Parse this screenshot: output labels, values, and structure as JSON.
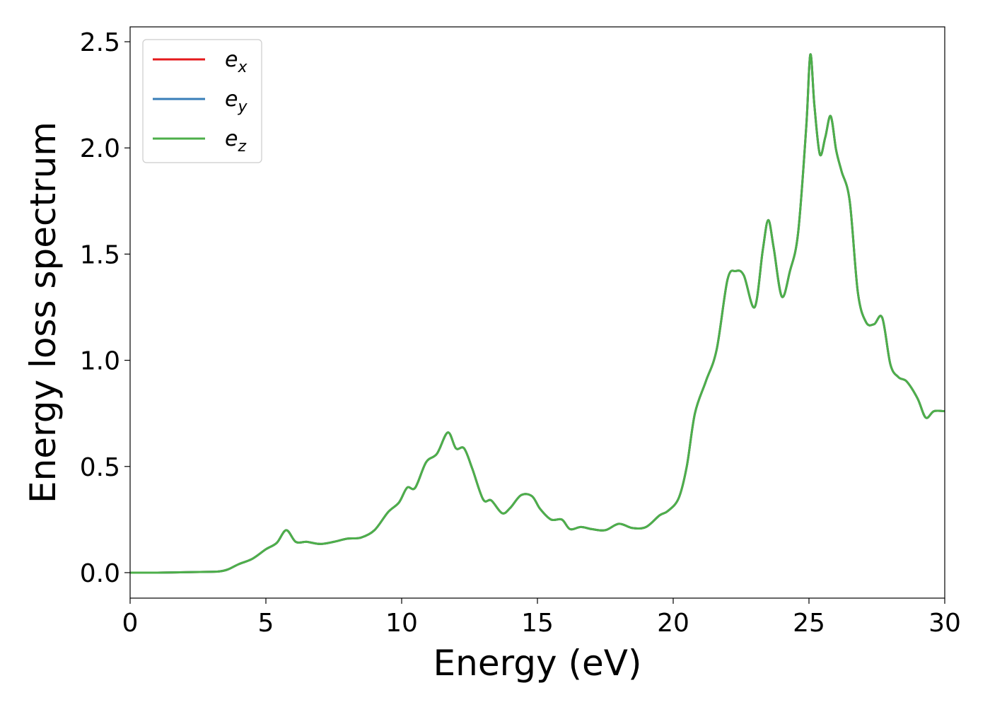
{
  "chart_data": {
    "type": "line",
    "title": "",
    "xlabel": "Energy (eV)",
    "ylabel": "Energy loss spectrum",
    "xlim": [
      0,
      30
    ],
    "ylim": [
      -0.12,
      2.57
    ],
    "xticks": [
      0,
      5,
      10,
      15,
      20,
      25,
      30
    ],
    "xtick_labels": [
      "0",
      "5",
      "10",
      "15",
      "20",
      "25",
      "30"
    ],
    "yticks": [
      0.0,
      0.5,
      1.0,
      1.5,
      2.0,
      2.5
    ],
    "ytick_labels": [
      "0.0",
      "0.5",
      "1.0",
      "1.5",
      "2.0",
      "2.5"
    ],
    "grid": false,
    "legend_position": "top-left",
    "x": [
      0,
      1,
      2,
      3,
      3.3,
      3.6,
      4.0,
      4.5,
      5.0,
      5.4,
      5.75,
      6.1,
      6.5,
      7.0,
      7.5,
      8.0,
      8.5,
      9.0,
      9.5,
      9.9,
      10.2,
      10.5,
      10.9,
      11.3,
      11.7,
      12.0,
      12.3,
      12.6,
      13.0,
      13.3,
      13.7,
      14.0,
      14.4,
      14.8,
      15.1,
      15.5,
      15.9,
      16.2,
      16.6,
      17.0,
      17.5,
      18.0,
      18.5,
      19.0,
      19.5,
      19.8,
      20.2,
      20.5,
      20.8,
      21.2,
      21.6,
      22.0,
      22.3,
      22.6,
      23.0,
      23.3,
      23.5,
      23.7,
      24.0,
      24.3,
      24.6,
      24.9,
      25.05,
      25.2,
      25.4,
      25.6,
      25.8,
      26.0,
      26.2,
      26.5,
      26.8,
      27.1,
      27.4,
      27.7,
      28.0,
      28.3,
      28.6,
      29.0,
      29.3,
      29.6,
      30.0
    ],
    "series": [
      {
        "name": "e_x",
        "label_base": "e",
        "label_sub": "x",
        "color": "#e41a1c",
        "y": [
          0.0,
          0.0,
          0.002,
          0.004,
          0.006,
          0.015,
          0.04,
          0.065,
          0.11,
          0.14,
          0.2,
          0.145,
          0.145,
          0.135,
          0.145,
          0.16,
          0.165,
          0.2,
          0.285,
          0.33,
          0.4,
          0.4,
          0.52,
          0.56,
          0.66,
          0.585,
          0.585,
          0.49,
          0.345,
          0.34,
          0.28,
          0.305,
          0.365,
          0.36,
          0.3,
          0.25,
          0.25,
          0.205,
          0.215,
          0.205,
          0.2,
          0.23,
          0.21,
          0.215,
          0.27,
          0.29,
          0.35,
          0.5,
          0.75,
          0.9,
          1.05,
          1.38,
          1.42,
          1.4,
          1.25,
          1.52,
          1.66,
          1.53,
          1.3,
          1.42,
          1.6,
          2.1,
          2.44,
          2.2,
          1.97,
          2.05,
          2.15,
          1.99,
          1.89,
          1.75,
          1.32,
          1.18,
          1.17,
          1.2,
          0.98,
          0.92,
          0.9,
          0.82,
          0.73,
          0.76,
          0.76
        ]
      },
      {
        "name": "e_y",
        "label_base": "e",
        "label_sub": "y",
        "color": "#377eb8",
        "y": [
          0.0,
          0.0,
          0.002,
          0.004,
          0.006,
          0.015,
          0.04,
          0.065,
          0.11,
          0.14,
          0.2,
          0.145,
          0.145,
          0.135,
          0.145,
          0.16,
          0.165,
          0.2,
          0.285,
          0.33,
          0.4,
          0.4,
          0.52,
          0.56,
          0.66,
          0.585,
          0.585,
          0.49,
          0.345,
          0.34,
          0.28,
          0.305,
          0.365,
          0.36,
          0.3,
          0.25,
          0.25,
          0.205,
          0.215,
          0.205,
          0.2,
          0.23,
          0.21,
          0.215,
          0.27,
          0.29,
          0.35,
          0.5,
          0.75,
          0.9,
          1.05,
          1.38,
          1.42,
          1.4,
          1.25,
          1.52,
          1.66,
          1.53,
          1.3,
          1.42,
          1.6,
          2.1,
          2.44,
          2.2,
          1.97,
          2.05,
          2.15,
          1.99,
          1.89,
          1.75,
          1.32,
          1.18,
          1.17,
          1.2,
          0.98,
          0.92,
          0.9,
          0.82,
          0.73,
          0.76,
          0.76
        ]
      },
      {
        "name": "e_z",
        "label_base": "e",
        "label_sub": "z",
        "color": "#4daf4a",
        "y": [
          0.0,
          0.0,
          0.002,
          0.004,
          0.006,
          0.015,
          0.04,
          0.065,
          0.11,
          0.14,
          0.2,
          0.145,
          0.145,
          0.135,
          0.145,
          0.16,
          0.165,
          0.2,
          0.285,
          0.33,
          0.4,
          0.4,
          0.52,
          0.56,
          0.66,
          0.585,
          0.585,
          0.49,
          0.345,
          0.34,
          0.28,
          0.305,
          0.365,
          0.36,
          0.3,
          0.25,
          0.25,
          0.205,
          0.215,
          0.205,
          0.2,
          0.23,
          0.21,
          0.215,
          0.27,
          0.29,
          0.35,
          0.5,
          0.75,
          0.9,
          1.05,
          1.38,
          1.42,
          1.4,
          1.25,
          1.52,
          1.66,
          1.53,
          1.3,
          1.42,
          1.6,
          2.1,
          2.44,
          2.2,
          1.97,
          2.05,
          2.15,
          1.99,
          1.89,
          1.75,
          1.32,
          1.18,
          1.17,
          1.2,
          0.98,
          0.92,
          0.9,
          0.82,
          0.73,
          0.76,
          0.76
        ]
      }
    ]
  }
}
